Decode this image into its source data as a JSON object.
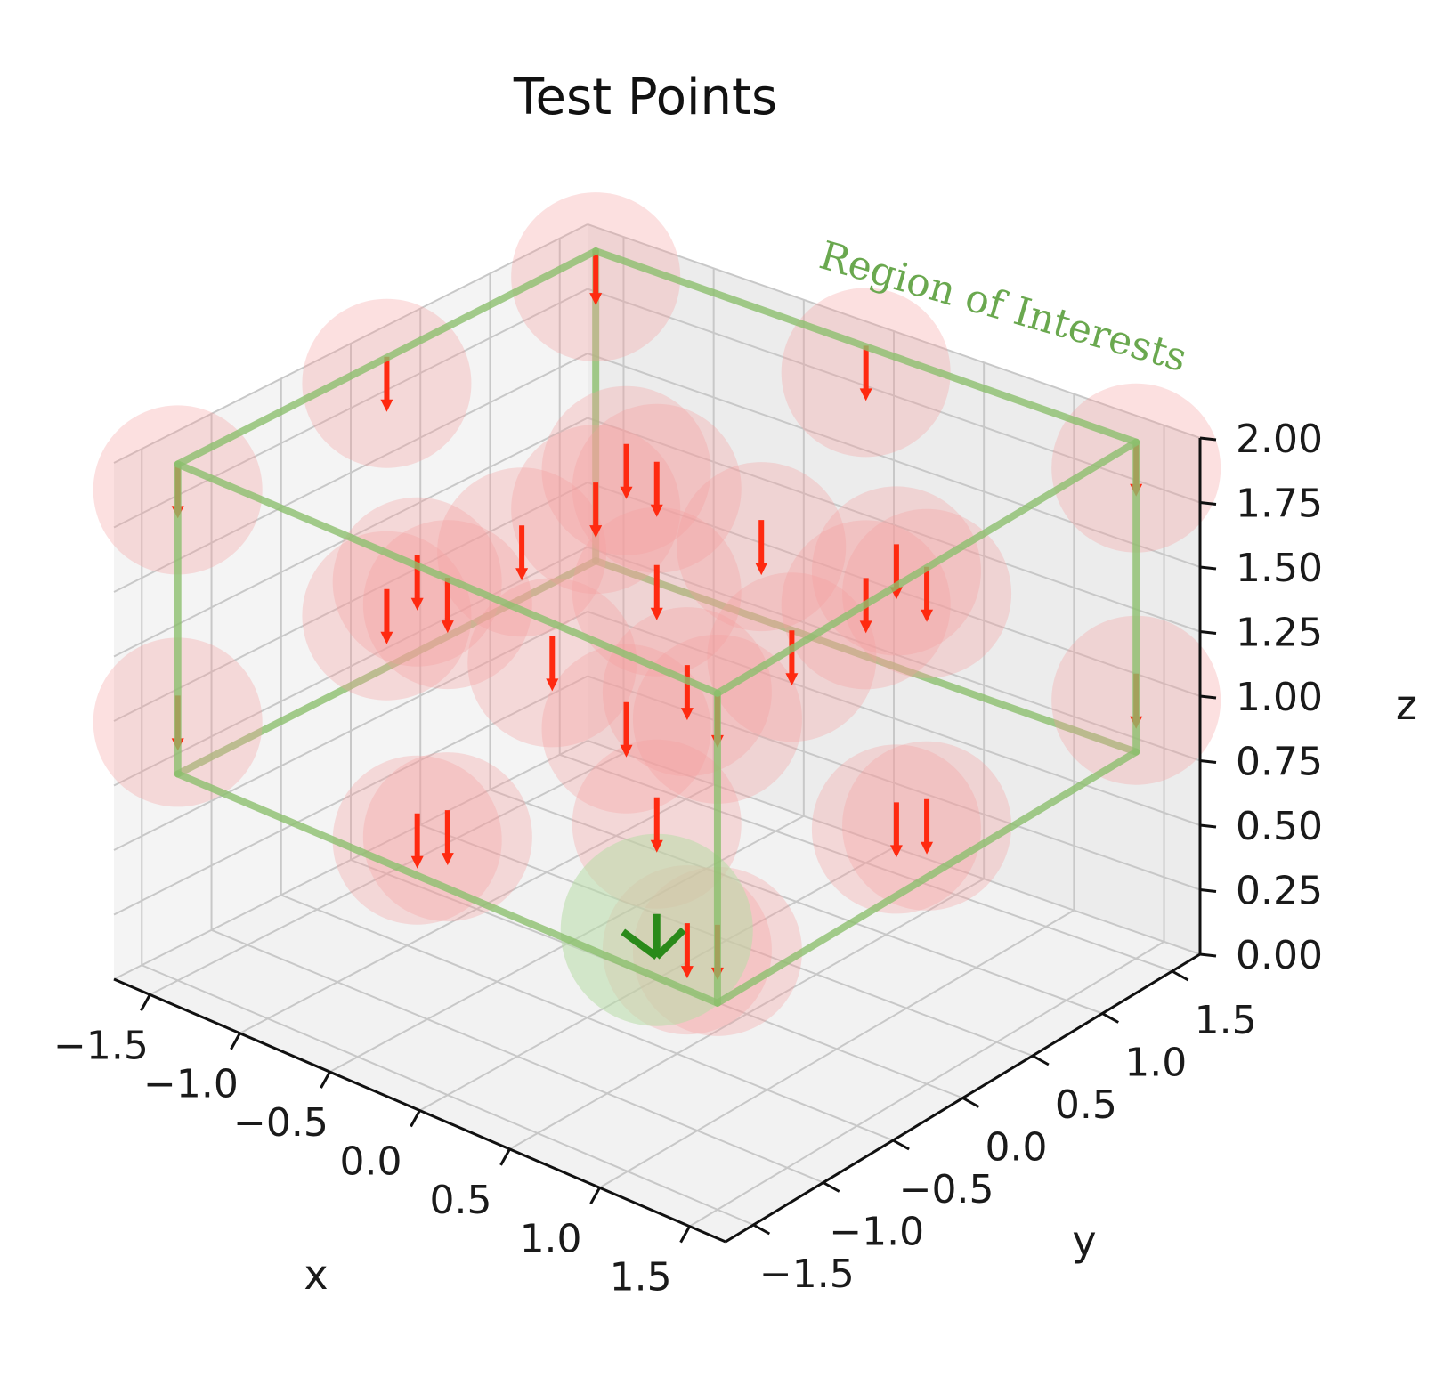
{
  "chart_data": {
    "type": "scatter",
    "projection": "3d",
    "title": "Test Points",
    "xlabel": "x",
    "ylabel": "y",
    "zlabel": "z",
    "xlim": [
      -1.7,
      1.7
    ],
    "ylim": [
      -1.7,
      1.7
    ],
    "zlim": [
      0.0,
      2.0
    ],
    "x_ticks": [
      "−1.5",
      "−1.0",
      "−0.5",
      "0.0",
      "0.5",
      "1.0",
      "1.5"
    ],
    "x_tick_values": [
      -1.5,
      -1.0,
      -0.5,
      0.0,
      0.5,
      1.0,
      1.5
    ],
    "y_ticks": [
      "−1.5",
      "−1.0",
      "−0.5",
      "0.0",
      "0.5",
      "1.0",
      "1.5"
    ],
    "y_tick_values": [
      -1.5,
      -1.0,
      -0.5,
      0.0,
      0.5,
      1.0,
      1.5
    ],
    "z_ticks": [
      "0.00",
      "0.25",
      "0.50",
      "0.75",
      "1.00",
      "1.25",
      "1.50",
      "1.75",
      "2.00"
    ],
    "z_tick_values": [
      0.0,
      0.25,
      0.5,
      0.75,
      1.0,
      1.25,
      1.5,
      1.75,
      2.0
    ],
    "grid": true,
    "region": {
      "label": "Region of Interests",
      "x": [
        -1.5,
        1.5
      ],
      "y": [
        -1.5,
        1.5
      ],
      "z": [
        0.8,
        2.0
      ],
      "color": "#8cbf6e"
    },
    "test_points": {
      "marker": "red downward arrow within translucent sphere",
      "point_color": "#ff2a10",
      "sphere_color": "#f7a0a0",
      "sphere_radius": 0.5,
      "points": [
        [
          -1.5,
          -1.5,
          1.9
        ],
        [
          -1.5,
          0.0,
          1.9
        ],
        [
          -1.5,
          1.5,
          1.9
        ],
        [
          0.0,
          -1.5,
          1.9
        ],
        [
          0.0,
          0.0,
          1.9
        ],
        [
          0.0,
          1.5,
          1.9
        ],
        [
          1.5,
          -1.5,
          1.9
        ],
        [
          1.5,
          0.0,
          1.9
        ],
        [
          1.5,
          1.5,
          1.9
        ],
        [
          -0.75,
          -0.75,
          1.55
        ],
        [
          -0.75,
          0.75,
          1.55
        ],
        [
          0.75,
          -0.75,
          1.55
        ],
        [
          0.75,
          0.75,
          1.55
        ],
        [
          0.0,
          0.0,
          1.5
        ],
        [
          -0.75,
          0.0,
          1.45
        ],
        [
          0.0,
          -0.75,
          1.45
        ],
        [
          0.75,
          0.0,
          1.45
        ],
        [
          0.0,
          0.75,
          1.45
        ],
        [
          -1.5,
          -1.5,
          1.0
        ],
        [
          -1.5,
          0.0,
          1.0
        ],
        [
          -1.5,
          1.5,
          1.0
        ],
        [
          0.0,
          -1.5,
          1.0
        ],
        [
          0.0,
          1.5,
          1.0
        ],
        [
          1.5,
          -1.5,
          1.0
        ],
        [
          1.5,
          0.0,
          1.0
        ],
        [
          1.5,
          1.5,
          1.0
        ],
        [
          -0.75,
          -0.75,
          0.55
        ],
        [
          -0.75,
          0.75,
          0.55
        ],
        [
          0.75,
          -0.75,
          0.55
        ],
        [
          0.75,
          0.75,
          0.55
        ],
        [
          0.0,
          0.0,
          0.6
        ]
      ]
    },
    "origin_point": {
      "x": 0.0,
      "y": 0.0,
      "z": 0.0,
      "color": "#2a8a1a",
      "sphere_color": "#b8dca8",
      "marker": "green arrows within translucent sphere"
    }
  }
}
